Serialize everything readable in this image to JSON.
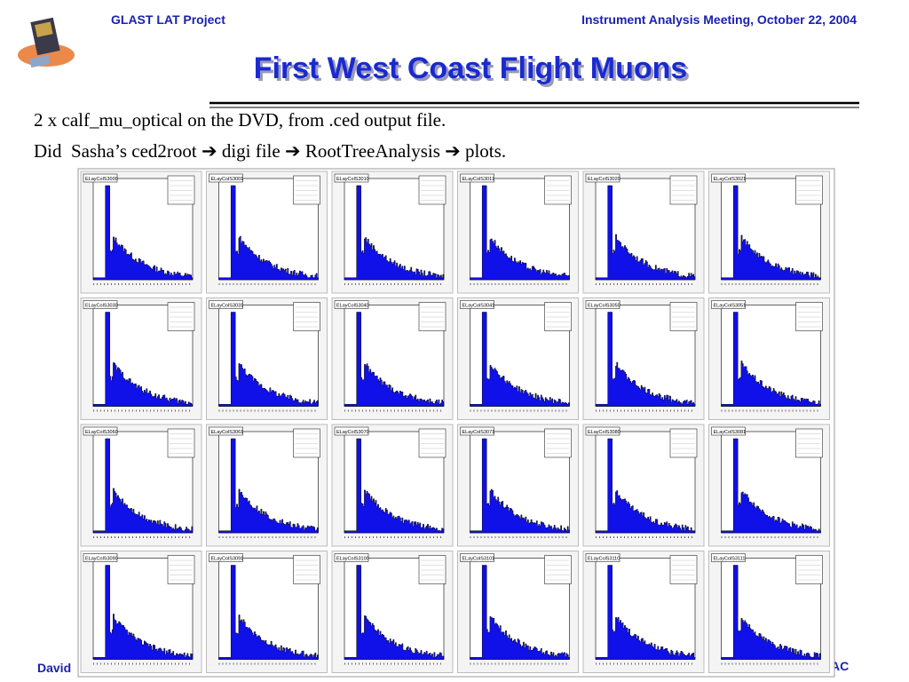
{
  "header": {
    "left": "GLAST LAT Project",
    "right": "Instrument Analysis Meeting, October 22, 2004"
  },
  "title": "First West Coast Flight Muons",
  "body": [
    "2 x calf_mu_optical on the DVD, from .ced output file.",
    "Did  Sasha’s ced2root ➔ digi file ➔ RootTreeAnalysis ➔ plots."
  ],
  "panels": [
    "ELayColS3000",
    "ELayColS3001",
    "ELayColS3010",
    "ELayColS3011",
    "ELayColS3020",
    "ELayColS3021",
    "ELayColS3030",
    "ELayColS3031",
    "ELayColS3040",
    "ELayColS3041",
    "ELayColS3050",
    "ELayColS3051",
    "ELayColS3060",
    "ELayColS3061",
    "ELayColS3070",
    "ELayColS3071",
    "ELayColS3080",
    "ELayColS3081",
    "ELayColS3090",
    "ELayColS3091",
    "ELayColS3100",
    "ELayColS3101",
    "ELayColS3110",
    "ELayColS3111"
  ],
  "footer": {
    "left": "David",
    "right": "AC"
  }
}
